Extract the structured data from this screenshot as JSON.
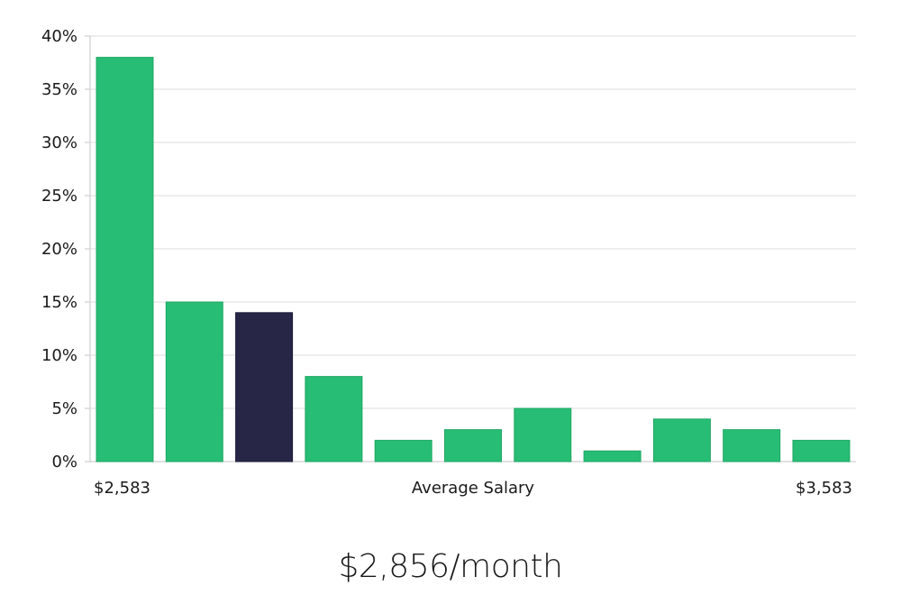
{
  "chart_data": {
    "type": "bar",
    "title": "",
    "xlabel": "Average Salary",
    "ylabel": "",
    "x_range_labels": {
      "min": "$2,583",
      "max": "$3,583"
    },
    "ylim": [
      0,
      40
    ],
    "yticks": [
      0,
      5,
      10,
      15,
      20,
      25,
      30,
      35,
      40
    ],
    "ytick_format": "{v}%",
    "grid": true,
    "values": [
      38,
      15,
      14,
      8,
      2,
      3,
      5,
      1,
      4,
      3,
      2
    ],
    "highlight_index": 2,
    "colors": {
      "bar": "#27bd74",
      "bar_border": "#22a866",
      "highlight": "#272647"
    }
  },
  "summary": {
    "value": "$2,856/month"
  }
}
